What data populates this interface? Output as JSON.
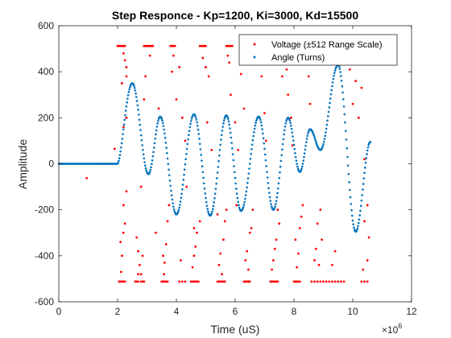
{
  "chart_data": {
    "type": "scatter",
    "title": "Step Responce - Kp=1200, Ki=3000, Kd=15500",
    "xlabel": "Time (uS)",
    "ylabel": "Amplitude",
    "x_multiplier_label": "×10",
    "x_multiplier_exponent": "6",
    "xlim": [
      0,
      12
    ],
    "ylim": [
      -600,
      600
    ],
    "x_ticks": [
      0,
      2,
      4,
      6,
      8,
      10,
      12
    ],
    "y_ticks": [
      -600,
      -400,
      -200,
      0,
      200,
      400,
      600
    ],
    "x_tick_labels": [
      "0",
      "2",
      "4",
      "6",
      "8",
      "10",
      "12"
    ],
    "y_tick_labels": [
      "-600",
      "-400",
      "-200",
      "0",
      "200",
      "400",
      "600"
    ],
    "grid": false,
    "legend_position": "top-right",
    "series": [
      {
        "name": "Voltage (±512 Range Scale)",
        "color": "#ff0000",
        "points": [
          [
            0.95,
            -62
          ],
          [
            1.5,
            0
          ],
          [
            1.65,
            0
          ],
          [
            1.8,
            0
          ],
          [
            1.9,
            65
          ],
          [
            2.0,
            512
          ],
          [
            2.05,
            512
          ],
          [
            2.1,
            512
          ],
          [
            2.15,
            512
          ],
          [
            2.2,
            512
          ],
          [
            2.25,
            512
          ],
          [
            2.2,
            480
          ],
          [
            2.25,
            450
          ],
          [
            2.3,
            420
          ],
          [
            2.15,
            350
          ],
          [
            2.3,
            380
          ],
          [
            2.05,
            -512
          ],
          [
            2.1,
            -512
          ],
          [
            2.15,
            -512
          ],
          [
            2.2,
            -512
          ],
          [
            2.25,
            -512
          ],
          [
            2.1,
            -340
          ],
          [
            2.15,
            -400
          ],
          [
            2.2,
            -300
          ],
          [
            2.12,
            -470
          ],
          [
            2.25,
            -260
          ],
          [
            2.2,
            -180
          ],
          [
            2.3,
            -120
          ],
          [
            2.3,
            200
          ],
          [
            2.2,
            160
          ],
          [
            2.8,
            -100
          ],
          [
            2.9,
            280
          ],
          [
            2.95,
            380
          ],
          [
            2.9,
            512
          ],
          [
            2.95,
            512
          ],
          [
            3.0,
            512
          ],
          [
            3.05,
            512
          ],
          [
            3.1,
            512
          ],
          [
            3.15,
            512
          ],
          [
            3.2,
            512
          ],
          [
            3.1,
            470
          ],
          [
            2.6,
            -512
          ],
          [
            2.65,
            -512
          ],
          [
            2.7,
            -512
          ],
          [
            2.8,
            -512
          ],
          [
            2.85,
            -512
          ],
          [
            2.9,
            -512
          ],
          [
            2.7,
            -380
          ],
          [
            2.75,
            -440
          ],
          [
            2.65,
            -320
          ],
          [
            2.8,
            -480
          ],
          [
            2.85,
            -400
          ],
          [
            2.7,
            -480
          ],
          [
            3.3,
            -300
          ],
          [
            3.4,
            240
          ],
          [
            3.5,
            -512
          ],
          [
            3.55,
            -512
          ],
          [
            3.6,
            -512
          ],
          [
            3.65,
            -512
          ],
          [
            3.7,
            -512
          ],
          [
            3.55,
            -400
          ],
          [
            3.6,
            -430
          ],
          [
            3.65,
            -350
          ],
          [
            3.58,
            -480
          ],
          [
            3.7,
            -250
          ],
          [
            3.75,
            -180
          ],
          [
            3.8,
            512
          ],
          [
            3.85,
            512
          ],
          [
            3.9,
            512
          ],
          [
            3.95,
            512
          ],
          [
            3.9,
            470
          ],
          [
            3.85,
            400
          ],
          [
            4.1,
            420
          ],
          [
            4.0,
            280
          ],
          [
            4.2,
            200
          ],
          [
            4.3,
            100
          ],
          [
            4.35,
            -100
          ],
          [
            4.1,
            -512
          ],
          [
            4.2,
            -512
          ],
          [
            4.3,
            -512
          ],
          [
            4.15,
            -420
          ],
          [
            4.5,
            -512
          ],
          [
            4.55,
            -512
          ],
          [
            4.6,
            -512
          ],
          [
            4.65,
            -512
          ],
          [
            4.7,
            -512
          ],
          [
            4.75,
            -512
          ],
          [
            4.6,
            -400
          ],
          [
            4.65,
            -360
          ],
          [
            4.55,
            -450
          ],
          [
            4.7,
            -300
          ],
          [
            4.8,
            -250
          ],
          [
            4.6,
            -280
          ],
          [
            4.8,
            512
          ],
          [
            4.85,
            512
          ],
          [
            4.9,
            512
          ],
          [
            4.95,
            512
          ],
          [
            5.0,
            512
          ],
          [
            4.9,
            460
          ],
          [
            5.0,
            420
          ],
          [
            5.1,
            380
          ],
          [
            5.05,
            180
          ],
          [
            5.2,
            60
          ],
          [
            5.4,
            -512
          ],
          [
            5.45,
            -512
          ],
          [
            5.5,
            -512
          ],
          [
            5.55,
            -512
          ],
          [
            5.6,
            -512
          ],
          [
            5.65,
            -512
          ],
          [
            5.45,
            -440
          ],
          [
            5.5,
            -390
          ],
          [
            5.6,
            -330
          ],
          [
            5.55,
            -480
          ],
          [
            5.65,
            -250
          ],
          [
            5.4,
            -220
          ],
          [
            5.7,
            -200
          ],
          [
            5.7,
            512
          ],
          [
            5.75,
            512
          ],
          [
            5.8,
            512
          ],
          [
            5.85,
            512
          ],
          [
            5.9,
            512
          ],
          [
            5.75,
            470
          ],
          [
            5.8,
            440
          ],
          [
            5.85,
            300
          ],
          [
            6.0,
            180
          ],
          [
            6.1,
            60
          ],
          [
            6.05,
            -180
          ],
          [
            6.2,
            512
          ],
          [
            6.25,
            512
          ],
          [
            6.3,
            512
          ],
          [
            6.4,
            440
          ],
          [
            6.2,
            390
          ],
          [
            6.3,
            240
          ],
          [
            6.3,
            -512
          ],
          [
            6.35,
            -512
          ],
          [
            6.4,
            -512
          ],
          [
            6.45,
            -512
          ],
          [
            6.5,
            -512
          ],
          [
            6.35,
            -420
          ],
          [
            6.4,
            -380
          ],
          [
            6.45,
            -460
          ],
          [
            6.5,
            -300
          ],
          [
            6.55,
            -280
          ],
          [
            6.6,
            -200
          ],
          [
            6.7,
            512
          ],
          [
            6.75,
            512
          ],
          [
            6.8,
            512
          ],
          [
            6.85,
            512
          ],
          [
            6.9,
            512
          ],
          [
            6.8,
            480
          ],
          [
            6.9,
            380
          ],
          [
            7.0,
            220
          ],
          [
            7.05,
            100
          ],
          [
            7.2,
            -512
          ],
          [
            7.25,
            -512
          ],
          [
            7.3,
            -512
          ],
          [
            7.35,
            -512
          ],
          [
            7.4,
            -512
          ],
          [
            7.45,
            -512
          ],
          [
            7.3,
            -420
          ],
          [
            7.35,
            -370
          ],
          [
            7.25,
            -460
          ],
          [
            7.4,
            -330
          ],
          [
            7.5,
            -260
          ],
          [
            7.45,
            -200
          ],
          [
            7.6,
            512
          ],
          [
            7.65,
            512
          ],
          [
            7.7,
            512
          ],
          [
            7.75,
            512
          ],
          [
            7.8,
            512
          ],
          [
            7.7,
            460
          ],
          [
            7.75,
            410
          ],
          [
            7.6,
            380
          ],
          [
            7.8,
            300
          ],
          [
            7.9,
            200
          ],
          [
            7.95,
            80
          ],
          [
            8.0,
            -512
          ],
          [
            8.05,
            -512
          ],
          [
            8.1,
            -512
          ],
          [
            8.15,
            -512
          ],
          [
            8.2,
            -512
          ],
          [
            8.1,
            -450
          ],
          [
            8.15,
            -390
          ],
          [
            8.05,
            -330
          ],
          [
            8.2,
            -280
          ],
          [
            8.25,
            -230
          ],
          [
            8.3,
            -180
          ],
          [
            8.3,
            512
          ],
          [
            8.35,
            512
          ],
          [
            8.4,
            512
          ],
          [
            8.45,
            512
          ],
          [
            8.5,
            512
          ],
          [
            8.4,
            450
          ],
          [
            8.5,
            380
          ],
          [
            8.55,
            260
          ],
          [
            8.6,
            -512
          ],
          [
            8.7,
            -512
          ],
          [
            8.8,
            -512
          ],
          [
            8.9,
            -512
          ],
          [
            9.0,
            -512
          ],
          [
            8.7,
            -420
          ],
          [
            8.75,
            -370
          ],
          [
            8.85,
            -440
          ],
          [
            8.95,
            -330
          ],
          [
            8.8,
            -260
          ],
          [
            8.9,
            -200
          ],
          [
            9.1,
            -512
          ],
          [
            9.2,
            -512
          ],
          [
            9.3,
            -512
          ],
          [
            9.4,
            -512
          ],
          [
            9.5,
            -512
          ],
          [
            9.6,
            -512
          ],
          [
            9.7,
            -512
          ],
          [
            9.3,
            -440
          ],
          [
            9.4,
            -380
          ],
          [
            9.6,
            512
          ],
          [
            9.7,
            512
          ],
          [
            9.8,
            512
          ],
          [
            9.9,
            512
          ],
          [
            10.0,
            512
          ],
          [
            9.5,
            470
          ],
          [
            9.9,
            410
          ],
          [
            10.1,
            360
          ],
          [
            10.3,
            330
          ],
          [
            10.0,
            260
          ],
          [
            10.2,
            200
          ],
          [
            10.3,
            -512
          ],
          [
            10.4,
            -512
          ],
          [
            10.5,
            -512
          ],
          [
            10.35,
            -460
          ],
          [
            10.5,
            -420
          ],
          [
            10.4,
            -250
          ],
          [
            10.5,
            -180
          ],
          [
            10.4,
            20
          ],
          [
            10.55,
            -320
          ]
        ]
      },
      {
        "name": "Angle (Turns)",
        "color": "#0072bd",
        "segments": [
          {
            "t0": 0.0,
            "t1": 2.0,
            "kind": "flat",
            "value": 0
          },
          {
            "t0": 2.0,
            "t1": 2.5,
            "kind": "rise",
            "value_start": 0,
            "value_end": 350
          },
          {
            "t0": 2.5,
            "t1": 3.05,
            "kind": "ease",
            "value_start": 350,
            "value_end": -45
          },
          {
            "t0": 3.05,
            "t1": 3.45,
            "kind": "ease",
            "value_start": -45,
            "value_end": 205
          },
          {
            "t0": 3.45,
            "t1": 4.0,
            "kind": "ease",
            "value_start": 205,
            "value_end": -220
          },
          {
            "t0": 4.0,
            "t1": 4.6,
            "kind": "ease",
            "value_start": -220,
            "value_end": 215
          },
          {
            "t0": 4.6,
            "t1": 5.15,
            "kind": "ease",
            "value_start": 215,
            "value_end": -225
          },
          {
            "t0": 5.15,
            "t1": 5.7,
            "kind": "ease",
            "value_start": -225,
            "value_end": 210
          },
          {
            "t0": 5.7,
            "t1": 6.2,
            "kind": "ease",
            "value_start": 210,
            "value_end": -205
          },
          {
            "t0": 6.2,
            "t1": 6.8,
            "kind": "ease",
            "value_start": -205,
            "value_end": 205
          },
          {
            "t0": 6.8,
            "t1": 7.3,
            "kind": "ease",
            "value_start": 205,
            "value_end": -200
          },
          {
            "t0": 7.3,
            "t1": 7.8,
            "kind": "ease",
            "value_start": -200,
            "value_end": 200
          },
          {
            "t0": 7.8,
            "t1": 8.2,
            "kind": "ease",
            "value_start": 200,
            "value_end": -35
          },
          {
            "t0": 8.2,
            "t1": 8.55,
            "kind": "ease",
            "value_start": -35,
            "value_end": 150
          },
          {
            "t0": 8.55,
            "t1": 8.9,
            "kind": "ease",
            "value_start": 150,
            "value_end": 60
          },
          {
            "t0": 8.9,
            "t1": 9.5,
            "kind": "ease",
            "value_start": 60,
            "value_end": 430
          },
          {
            "t0": 9.5,
            "t1": 10.1,
            "kind": "ease",
            "value_start": 430,
            "value_end": -295
          },
          {
            "t0": 10.1,
            "t1": 10.6,
            "kind": "ease",
            "value_start": -295,
            "value_end": 95
          }
        ]
      }
    ]
  }
}
